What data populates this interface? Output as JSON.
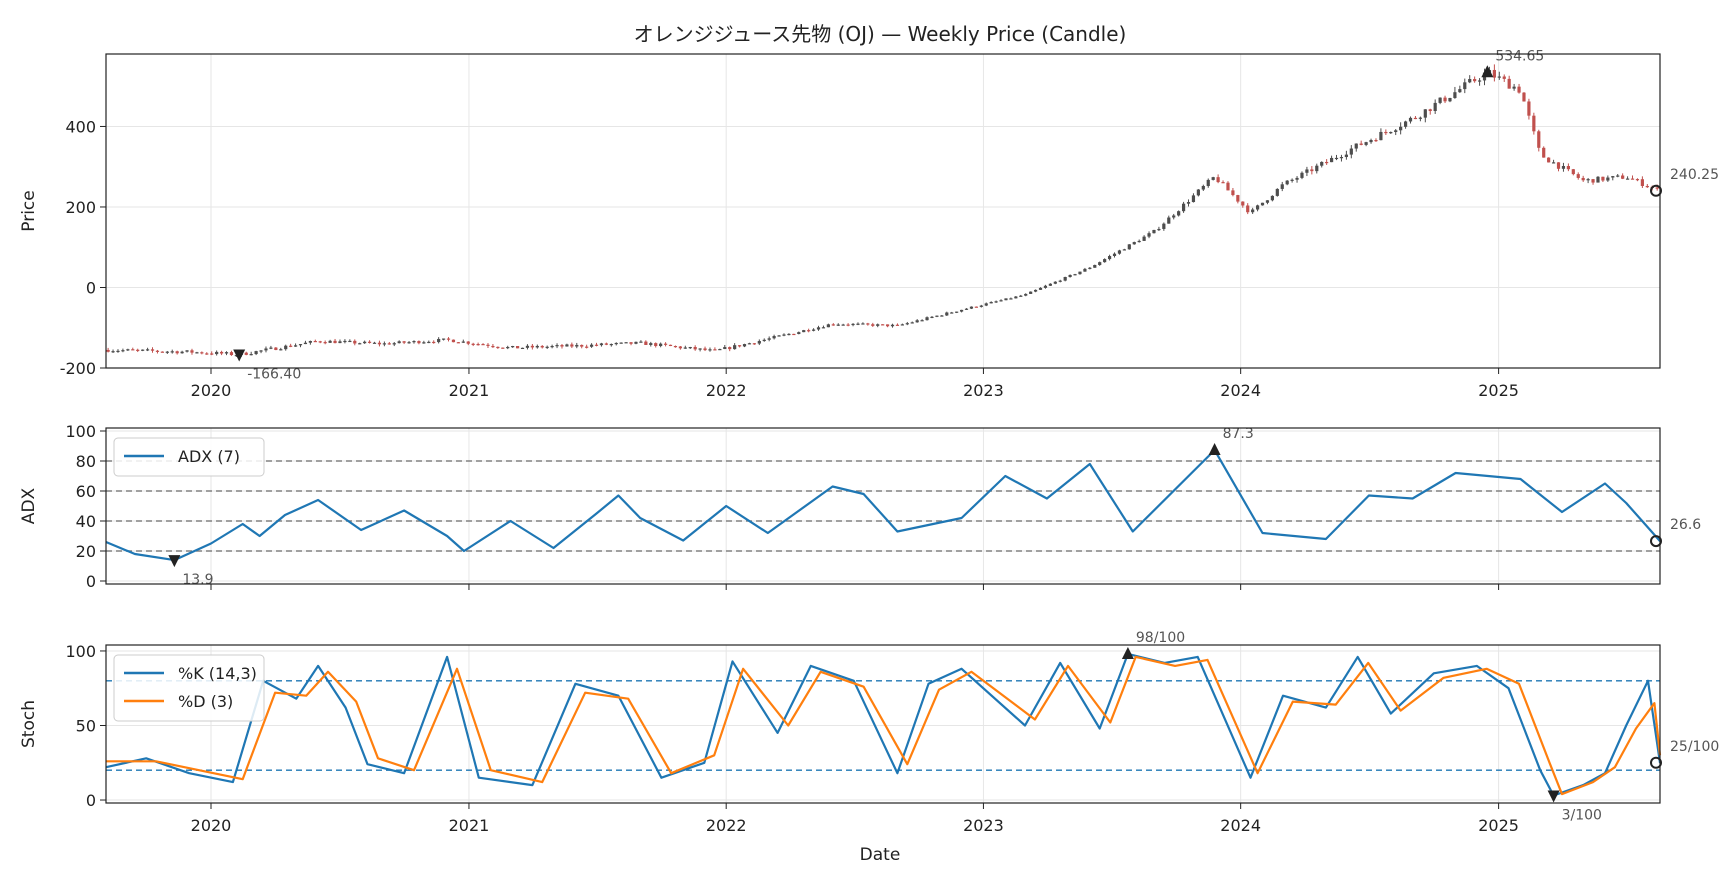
{
  "chart_data": {
    "title": "オレンジジュース先物 (OJ) — Weekly Price (Candle)",
    "xlabel": "Date",
    "x_ticks": [
      "2020",
      "2021",
      "2022",
      "2023",
      "2024",
      "2025"
    ],
    "x_range": [
      "2019-08-05",
      "2025-08-18"
    ],
    "grid": true,
    "colors": {
      "up": "#4d4d4d",
      "down": "#c0504d",
      "adx": "#1f77b4",
      "k": "#1f77b4",
      "d": "#ff7f0e",
      "ref": "#808080"
    },
    "panels": [
      {
        "type": "candlestick",
        "ylabel": "Price",
        "ylim": [
          -200,
          580
        ],
        "y_ticks": [
          "-200",
          "0",
          "200",
          "400"
        ],
        "anchors": [
          [
            "2019-08-05",
            -155
          ],
          [
            "2019-12-01",
            -160
          ],
          [
            "2020-02-10",
            -166.4
          ],
          [
            "2020-06-01",
            -133
          ],
          [
            "2020-09-01",
            -140
          ],
          [
            "2020-12-01",
            -130
          ],
          [
            "2021-03-01",
            -150
          ],
          [
            "2021-06-01",
            -145
          ],
          [
            "2021-09-01",
            -138
          ],
          [
            "2021-12-15",
            -158
          ],
          [
            "2022-03-01",
            -128
          ],
          [
            "2022-06-01",
            -90
          ],
          [
            "2022-09-01",
            -95
          ],
          [
            "2022-12-01",
            -55
          ],
          [
            "2023-03-01",
            -18
          ],
          [
            "2023-06-01",
            50
          ],
          [
            "2023-09-01",
            140
          ],
          [
            "2023-11-25",
            275
          ],
          [
            "2024-01-15",
            185
          ],
          [
            "2024-03-01",
            255
          ],
          [
            "2024-06-01",
            340
          ],
          [
            "2024-09-01",
            420
          ],
          [
            "2024-12-16",
            534.65
          ],
          [
            "2025-02-01",
            490
          ],
          [
            "2025-03-01",
            330
          ],
          [
            "2025-05-01",
            265
          ],
          [
            "2025-07-01",
            275
          ],
          [
            "2025-08-18",
            240.25
          ]
        ],
        "annotations": [
          {
            "label": "534.65",
            "x": "2024-12-16",
            "y": 534.65,
            "marker": "up"
          },
          {
            "label": "-166.40",
            "x": "2020-02-10",
            "y": -166.4,
            "marker": "down"
          },
          {
            "label": "240.25",
            "x": "2025-08-18",
            "y": 240.25,
            "marker": "last"
          }
        ]
      },
      {
        "type": "line",
        "ylabel": "ADX",
        "ylim": [
          -2,
          102
        ],
        "y_ticks": [
          "0",
          "20",
          "40",
          "60",
          "80",
          "100"
        ],
        "ref_lines": [
          20,
          40,
          60,
          80
        ],
        "series": [
          {
            "name": "ADX (7)",
            "points": [
              [
                "2019-08-05",
                26
              ],
              [
                "2019-09-15",
                18
              ],
              [
                "2019-11-10",
                13.9
              ],
              [
                "2020-01-01",
                25
              ],
              [
                "2020-02-15",
                38
              ],
              [
                "2020-03-10",
                30
              ],
              [
                "2020-04-15",
                44
              ],
              [
                "2020-06-01",
                54
              ],
              [
                "2020-08-01",
                34
              ],
              [
                "2020-10-01",
                47
              ],
              [
                "2020-12-01",
                30
              ],
              [
                "2020-12-25",
                20
              ],
              [
                "2021-03-01",
                40
              ],
              [
                "2021-05-01",
                22
              ],
              [
                "2021-07-01",
                45
              ],
              [
                "2021-08-01",
                57
              ],
              [
                "2021-09-01",
                42
              ],
              [
                "2021-11-01",
                27
              ],
              [
                "2022-01-01",
                50
              ],
              [
                "2022-03-01",
                32
              ],
              [
                "2022-06-01",
                63
              ],
              [
                "2022-07-15",
                58
              ],
              [
                "2022-09-01",
                33
              ],
              [
                "2022-12-01",
                42
              ],
              [
                "2023-02-01",
                70
              ],
              [
                "2023-04-01",
                55
              ],
              [
                "2023-06-01",
                78
              ],
              [
                "2023-08-01",
                33
              ],
              [
                "2023-11-25",
                87.3
              ],
              [
                "2024-02-01",
                32
              ],
              [
                "2024-05-01",
                28
              ],
              [
                "2024-07-01",
                57
              ],
              [
                "2024-09-01",
                55
              ],
              [
                "2024-11-01",
                72
              ],
              [
                "2025-02-01",
                68
              ],
              [
                "2025-04-01",
                46
              ],
              [
                "2025-06-01",
                65
              ],
              [
                "2025-07-01",
                52
              ],
              [
                "2025-08-18",
                26.6
              ]
            ]
          }
        ],
        "annotations": [
          {
            "label": "87.3",
            "x": "2023-11-25",
            "y": 87.3,
            "marker": "up"
          },
          {
            "label": "13.9",
            "x": "2019-11-10",
            "y": 13.9,
            "marker": "down"
          },
          {
            "label": "26.6",
            "x": "2025-08-18",
            "y": 26.6,
            "marker": "last"
          }
        ]
      },
      {
        "type": "line",
        "ylabel": "Stoch",
        "ylim": [
          -2,
          104
        ],
        "y_ticks": [
          "0",
          "50",
          "100"
        ],
        "ref_lines": [
          20,
          80
        ],
        "series": [
          {
            "name": "%K (14,3)",
            "points": [
              [
                "2019-08-05",
                22
              ],
              [
                "2019-10-01",
                28
              ],
              [
                "2019-12-01",
                18
              ],
              [
                "2020-02-01",
                12
              ],
              [
                "2020-03-15",
                80
              ],
              [
                "2020-05-01",
                68
              ],
              [
                "2020-06-01",
                90
              ],
              [
                "2020-07-10",
                62
              ],
              [
                "2020-08-10",
                24
              ],
              [
                "2020-10-01",
                18
              ],
              [
                "2020-12-01",
                96
              ],
              [
                "2021-01-15",
                15
              ],
              [
                "2021-04-01",
                10
              ],
              [
                "2021-06-01",
                78
              ],
              [
                "2021-08-01",
                70
              ],
              [
                "2021-10-01",
                15
              ],
              [
                "2021-12-01",
                25
              ],
              [
                "2022-01-10",
                93
              ],
              [
                "2022-03-15",
                45
              ],
              [
                "2022-05-01",
                90
              ],
              [
                "2022-07-01",
                80
              ],
              [
                "2022-09-01",
                18
              ],
              [
                "2022-10-15",
                78
              ],
              [
                "2022-12-01",
                88
              ],
              [
                "2023-03-01",
                50
              ],
              [
                "2023-04-20",
                92
              ],
              [
                "2023-06-15",
                48
              ],
              [
                "2023-07-25",
                98
              ],
              [
                "2023-09-15",
                92
              ],
              [
                "2023-11-01",
                96
              ],
              [
                "2024-01-15",
                15
              ],
              [
                "2024-03-01",
                70
              ],
              [
                "2024-05-01",
                62
              ],
              [
                "2024-06-15",
                96
              ],
              [
                "2024-08-01",
                58
              ],
              [
                "2024-10-01",
                85
              ],
              [
                "2024-12-01",
                90
              ],
              [
                "2025-01-15",
                75
              ],
              [
                "2025-03-01",
                20
              ],
              [
                "2025-03-20",
                3
              ],
              [
                "2025-05-01",
                10
              ],
              [
                "2025-06-01",
                18
              ],
              [
                "2025-07-01",
                50
              ],
              [
                "2025-08-01",
                80
              ],
              [
                "2025-08-18",
                25
              ]
            ]
          },
          {
            "name": "%D (3)",
            "points": [
              [
                "2019-08-05",
                26
              ],
              [
                "2019-10-15",
                26
              ],
              [
                "2019-12-15",
                20
              ],
              [
                "2020-02-15",
                14
              ],
              [
                "2020-04-01",
                72
              ],
              [
                "2020-05-15",
                70
              ],
              [
                "2020-06-15",
                86
              ],
              [
                "2020-07-25",
                66
              ],
              [
                "2020-08-25",
                28
              ],
              [
                "2020-10-15",
                20
              ],
              [
                "2020-12-15",
                88
              ],
              [
                "2021-02-01",
                20
              ],
              [
                "2021-04-15",
                12
              ],
              [
                "2021-06-15",
                72
              ],
              [
                "2021-08-15",
                68
              ],
              [
                "2021-10-15",
                18
              ],
              [
                "2021-12-15",
                30
              ],
              [
                "2022-01-25",
                88
              ],
              [
                "2022-03-30",
                50
              ],
              [
                "2022-05-15",
                86
              ],
              [
                "2022-07-15",
                76
              ],
              [
                "2022-09-15",
                24
              ],
              [
                "2022-10-30",
                74
              ],
              [
                "2022-12-15",
                86
              ],
              [
                "2023-03-15",
                54
              ],
              [
                "2023-05-01",
                90
              ],
              [
                "2023-06-30",
                52
              ],
              [
                "2023-08-05",
                96
              ],
              [
                "2023-09-30",
                90
              ],
              [
                "2023-11-15",
                94
              ],
              [
                "2024-01-25",
                18
              ],
              [
                "2024-03-15",
                66
              ],
              [
                "2024-05-15",
                64
              ],
              [
                "2024-06-30",
                92
              ],
              [
                "2024-08-15",
                60
              ],
              [
                "2024-10-15",
                82
              ],
              [
                "2024-12-15",
                88
              ],
              [
                "2025-01-30",
                78
              ],
              [
                "2025-03-15",
                24
              ],
              [
                "2025-04-01",
                4
              ],
              [
                "2025-05-15",
                12
              ],
              [
                "2025-06-15",
                22
              ],
              [
                "2025-07-15",
                48
              ],
              [
                "2025-08-10",
                65
              ],
              [
                "2025-08-18",
                30
              ]
            ]
          }
        ],
        "annotations": [
          {
            "label": "98/100",
            "x": "2023-07-25",
            "y": 98,
            "marker": "up"
          },
          {
            "label": "3/100",
            "x": "2025-03-20",
            "y": 3,
            "marker": "down"
          },
          {
            "label": "25/100",
            "x": "2025-08-18",
            "y": 25,
            "marker": "last"
          }
        ]
      }
    ]
  }
}
